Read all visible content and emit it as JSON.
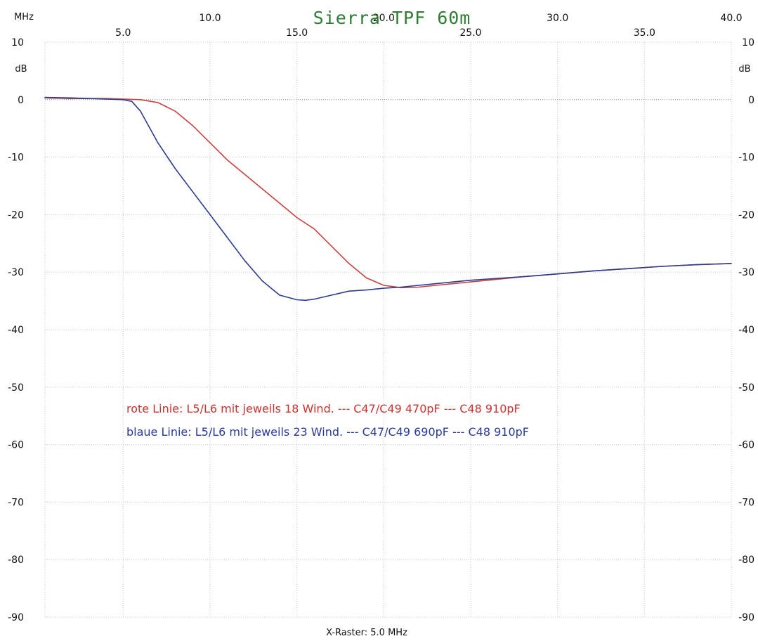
{
  "chart_data": {
    "type": "line",
    "title": "Sierra TPF 60m",
    "x_unit": "MHz",
    "y_unit_left": "dB",
    "y_unit_right": "dB",
    "x_footer": "X-Raster: 5.0 MHz",
    "xlim": [
      0.5,
      40.0
    ],
    "ylim": [
      -90,
      10
    ],
    "x_ticks_upper": [
      "10.0",
      "20.0",
      "30.0",
      "40.0"
    ],
    "x_ticks_lower": [
      "5.0",
      "15.0",
      "25.0",
      "35.0"
    ],
    "y_ticks_left": [
      "10",
      "0",
      "-10",
      "-20",
      "-30",
      "-40",
      "-50",
      "-60",
      "-70",
      "-80",
      "-90"
    ],
    "y_ticks_right": [
      "10",
      "0",
      "-10",
      "-20",
      "-30",
      "-40",
      "-50",
      "-60",
      "-70",
      "-80",
      "-90"
    ],
    "grid": true,
    "title_color": "#2e7d32",
    "annotations": [
      {
        "text": "rote Linie: L5/L6 mit jeweils 18 Wind. --- C47/C49 470pF --- C48 910pF",
        "color": "#d0312d"
      },
      {
        "text": "blaue Linie: L5/L6 mit jeweils 23 Wind. --- C47/C49 690pF --- C48 910pF",
        "color": "#2a3a9a"
      }
    ],
    "series": [
      {
        "color": "#c8423f",
        "x": [
          0.5,
          2,
          4,
          6,
          7,
          8,
          9,
          10,
          11,
          12,
          13,
          14,
          15,
          16,
          17,
          18,
          19,
          20,
          21,
          22,
          23,
          24,
          25,
          26,
          27,
          28,
          30,
          32,
          34,
          36,
          38,
          40
        ],
        "y": [
          0.3,
          0.2,
          0.2,
          0.0,
          -0.5,
          -2.0,
          -4.5,
          -7.5,
          -10.5,
          -13.0,
          -15.5,
          -18.0,
          -20.5,
          -22.5,
          -25.5,
          -28.5,
          -31.0,
          -32.3,
          -32.7,
          -32.6,
          -32.3,
          -32.0,
          -31.7,
          -31.4,
          -31.1,
          -30.8,
          -30.3,
          -29.8,
          -29.4,
          -29.0,
          -28.7,
          -28.5
        ]
      },
      {
        "color": "#2b3c8f",
        "x": [
          0.5,
          2,
          4,
          5,
          5.5,
          6,
          7,
          8,
          9,
          10,
          11,
          12,
          13,
          14,
          15,
          15.5,
          16,
          17,
          18,
          19,
          20,
          21,
          22,
          23,
          24,
          25,
          26,
          28,
          30,
          32,
          34,
          36,
          38,
          40
        ],
        "y": [
          0.4,
          0.3,
          0.1,
          0.0,
          -0.3,
          -2.0,
          -7.5,
          -12.0,
          -16.0,
          -20.0,
          -24.0,
          -28.0,
          -31.5,
          -34.0,
          -34.8,
          -34.9,
          -34.7,
          -34.0,
          -33.3,
          -33.1,
          -32.8,
          -32.6,
          -32.3,
          -32.0,
          -31.7,
          -31.4,
          -31.2,
          -30.8,
          -30.3,
          -29.8,
          -29.4,
          -29.0,
          -28.7,
          -28.5
        ]
      }
    ]
  }
}
